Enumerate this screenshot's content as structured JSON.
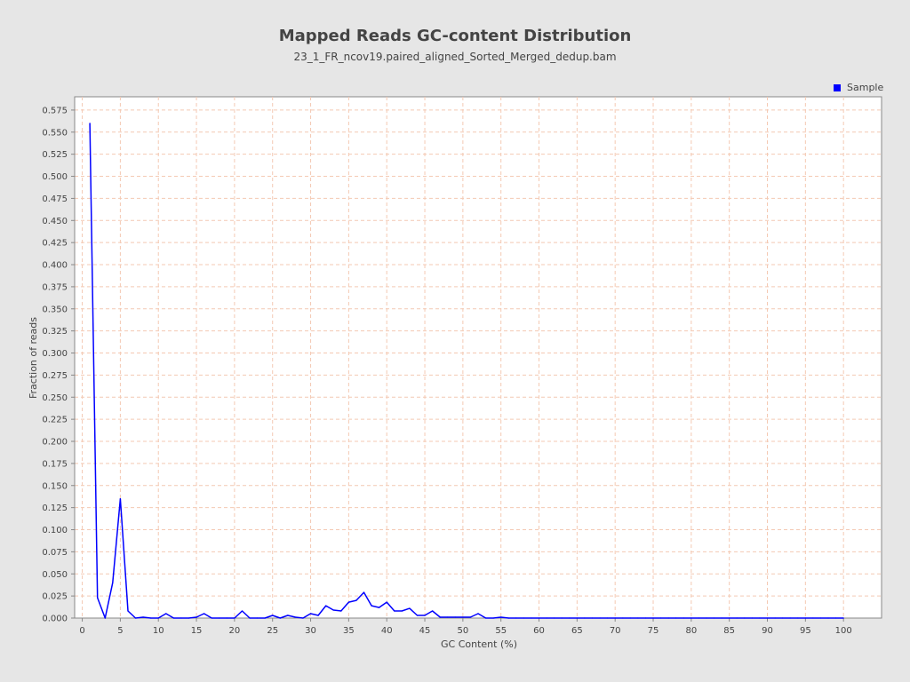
{
  "chart_data": {
    "type": "line",
    "title": "Mapped Reads GC-content Distribution",
    "subtitle": "23_1_FR_ncov19.paired_aligned_Sorted_Merged_dedup.bam",
    "xlabel": "GC Content (%)",
    "ylabel": "Fraction of reads",
    "xlim": [
      -1,
      105
    ],
    "ylim": [
      0,
      0.59
    ],
    "xticks": [
      0,
      5,
      10,
      15,
      20,
      25,
      30,
      35,
      40,
      45,
      50,
      55,
      60,
      65,
      70,
      75,
      80,
      85,
      90,
      95,
      100
    ],
    "yticks": [
      0,
      0.025,
      0.05,
      0.075,
      0.1,
      0.125,
      0.15,
      0.175,
      0.2,
      0.225,
      0.25,
      0.275,
      0.3,
      0.325,
      0.35,
      0.375,
      0.4,
      0.425,
      0.45,
      0.475,
      0.5,
      0.525,
      0.55,
      0.575
    ],
    "xtick_labels": [
      "0",
      "5",
      "10",
      "15",
      "20",
      "25",
      "30",
      "35",
      "40",
      "45",
      "50",
      "55",
      "60",
      "65",
      "70",
      "75",
      "80",
      "85",
      "90",
      "95",
      "100"
    ],
    "ytick_labels": [
      "0.000",
      "0.025",
      "0.050",
      "0.075",
      "0.100",
      "0.125",
      "0.150",
      "0.175",
      "0.200",
      "0.225",
      "0.250",
      "0.275",
      "0.300",
      "0.325",
      "0.350",
      "0.375",
      "0.400",
      "0.425",
      "0.450",
      "0.475",
      "0.500",
      "0.525",
      "0.550",
      "0.575"
    ],
    "grid": true,
    "legend_position": "top-right",
    "series": [
      {
        "name": "Sample",
        "color": "#0000ff",
        "x": [
          1,
          2,
          3,
          4,
          5,
          6,
          7,
          8,
          9,
          10,
          11,
          12,
          13,
          14,
          15,
          16,
          17,
          18,
          19,
          20,
          21,
          22,
          23,
          24,
          25,
          26,
          27,
          28,
          29,
          30,
          31,
          32,
          33,
          34,
          35,
          36,
          37,
          38,
          39,
          40,
          41,
          42,
          43,
          44,
          45,
          46,
          47,
          48,
          49,
          50,
          51,
          52,
          53,
          54,
          55,
          56,
          57,
          58,
          59,
          60,
          61,
          62,
          63,
          64,
          65,
          66,
          67,
          68,
          69,
          70,
          71,
          72,
          73,
          74,
          75,
          76,
          77,
          78,
          79,
          80,
          81,
          82,
          83,
          84,
          85,
          86,
          87,
          88,
          89,
          90,
          91,
          92,
          93,
          94,
          95,
          96,
          97,
          98,
          99,
          100
        ],
        "values": [
          0.56,
          0.023,
          0.0,
          0.04,
          0.135,
          0.008,
          0.0,
          0.001,
          0.0,
          0.0,
          0.005,
          0.0,
          0.0,
          0.0,
          0.001,
          0.005,
          0.0,
          0.0,
          0.0,
          0.0,
          0.008,
          0.0,
          0.0,
          0.0,
          0.003,
          0.0,
          0.003,
          0.001,
          0.0,
          0.005,
          0.003,
          0.014,
          0.009,
          0.008,
          0.018,
          0.02,
          0.029,
          0.014,
          0.012,
          0.018,
          0.008,
          0.008,
          0.011,
          0.003,
          0.003,
          0.008,
          0.001,
          0.001,
          0.001,
          0.001,
          0.001,
          0.005,
          0.0,
          0.0,
          0.001,
          0.0,
          0.0,
          0.0,
          0.0,
          0.0,
          0.0,
          0.0,
          0.0,
          0.0,
          0.0,
          0.0,
          0.0,
          0.0,
          0.0,
          0.0,
          0.0,
          0.0,
          0.0,
          0.0,
          0.0,
          0.0,
          0.0,
          0.0,
          0.0,
          0.0,
          0.0,
          0.0,
          0.0,
          0.0,
          0.0,
          0.0,
          0.0,
          0.0,
          0.0,
          0.0,
          0.0,
          0.0,
          0.0,
          0.0,
          0.0,
          0.0,
          0.0,
          0.0,
          0.0,
          0.0
        ]
      }
    ]
  },
  "colors": {
    "background": "#e6e6e6",
    "plot_background": "#ffffff",
    "grid": "#f4c9b3",
    "series": "#0000ff"
  }
}
